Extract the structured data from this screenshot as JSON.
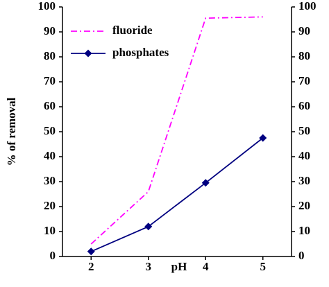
{
  "chart_data": {
    "type": "line",
    "x_label": "pH",
    "y_label": "% of removal",
    "x": [
      2,
      3,
      4,
      5
    ],
    "xlim": [
      1.5,
      5.5
    ],
    "xticks": [
      2,
      3,
      4,
      5
    ],
    "ylim": [
      0,
      100
    ],
    "yticks": [
      0,
      10,
      20,
      30,
      40,
      50,
      60,
      70,
      80,
      90,
      100
    ],
    "y2lim": [
      0,
      100
    ],
    "y2ticks": [
      0,
      10,
      20,
      30,
      40,
      50,
      60,
      70,
      80,
      90,
      100
    ],
    "grid": false,
    "legend": "upper left",
    "series": [
      {
        "name": "fluoride",
        "color": "#ff00ff",
        "style": "dashdot",
        "values": [
          5,
          26,
          95.5,
          96
        ]
      },
      {
        "name": "phosphates",
        "color": "#000080",
        "style": "solid",
        "marker": "diamond",
        "values": [
          2,
          12,
          29.5,
          47.5
        ]
      }
    ]
  }
}
